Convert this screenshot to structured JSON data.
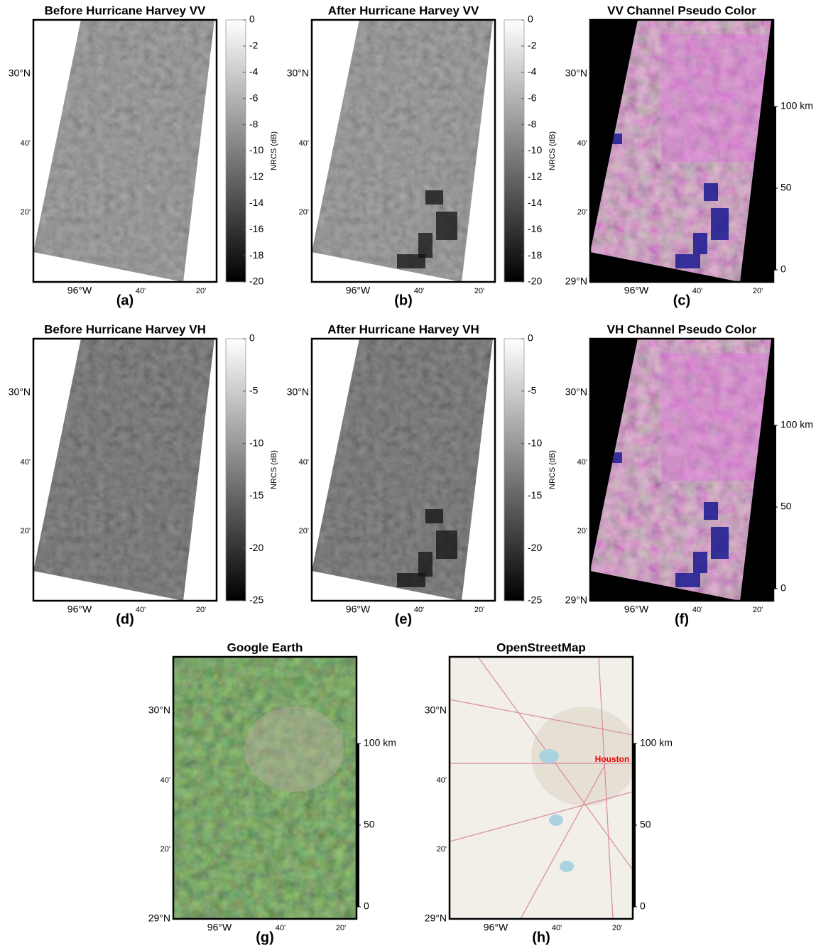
{
  "panels": [
    {
      "title": "Before Hurricane Harvey VV",
      "label": "(a)",
      "kind": "sar-gray",
      "noise_seed": 3,
      "lat_labels": [
        "30°N",
        "40'",
        "20'"
      ],
      "lon_labels": [
        "96°W",
        "40'",
        "20'"
      ],
      "colorbar": {
        "label": "NRCS (dB)",
        "lim": [
          -20,
          0
        ],
        "ticks": [
          0,
          -2,
          -4,
          -6,
          -8,
          -10,
          -12,
          -14,
          -16,
          -18,
          -20
        ]
      }
    },
    {
      "title": "After Hurricane Harvey VV",
      "label": "(b)",
      "kind": "sar-gray",
      "noise_seed": 7,
      "lat_labels": [
        "30°N",
        "40'",
        "20'"
      ],
      "lon_labels": [
        "96°W",
        "40'",
        "20'"
      ],
      "colorbar": {
        "label": "NRCS (dB)",
        "lim": [
          -20,
          0
        ],
        "ticks": [
          0,
          -2,
          -4,
          -6,
          -8,
          -10,
          -12,
          -14,
          -16,
          -18,
          -20
        ]
      }
    },
    {
      "title": "VV Channel Pseudo Color",
      "label": "(c)",
      "kind": "sar-color",
      "lat_labels": [
        "30°N",
        "40'",
        "20'",
        "29°N"
      ],
      "lon_labels": [
        "96°W",
        "40'",
        "20'"
      ],
      "scalebar": {
        "lim": [
          0,
          100
        ],
        "ticks": [
          0,
          50,
          {
            "value": 100,
            "label": "100 km"
          }
        ]
      }
    },
    {
      "title": "Before Hurricane Harvey VH",
      "label": "(d)",
      "kind": "sar-gray",
      "noise_seed": 11,
      "lat_labels": [
        "30°N",
        "40'",
        "20'"
      ],
      "lon_labels": [
        "96°W",
        "40'",
        "20'"
      ],
      "colorbar": {
        "label": "NRCS (dB)",
        "lim": [
          -25,
          0
        ],
        "ticks": [
          0,
          -5,
          -10,
          -15,
          -20,
          -25
        ]
      }
    },
    {
      "title": "After Hurricane Harvey VH",
      "label": "(e)",
      "kind": "sar-gray",
      "noise_seed": 13,
      "lat_labels": [
        "30°N",
        "40'",
        "20'"
      ],
      "lon_labels": [
        "96°W",
        "40'",
        "20'"
      ],
      "colorbar": {
        "label": "NRCS (dB)",
        "lim": [
          -25,
          0
        ],
        "ticks": [
          0,
          -5,
          -10,
          -15,
          -20,
          -25
        ]
      }
    },
    {
      "title": "VH Channel Pseudo Color",
      "label": "(f)",
      "kind": "sar-color",
      "lat_labels": [
        "30°N",
        "40'",
        "20'",
        "29°N"
      ],
      "lon_labels": [
        "96°W",
        "40'",
        "20'"
      ],
      "scalebar": {
        "lim": [
          0,
          100
        ],
        "ticks": [
          0,
          50,
          {
            "value": 100,
            "label": "100 km"
          }
        ]
      }
    },
    {
      "title": "Google Earth",
      "label": "(g)",
      "kind": "optical",
      "lat_labels": [
        "30°N",
        "40'",
        "20'",
        "29°N"
      ],
      "lon_labels": [
        "96°W",
        "40'",
        "20'"
      ],
      "scalebar": {
        "lim": [
          0,
          100
        ],
        "ticks": [
          0,
          50,
          {
            "value": 100,
            "label": "100 km"
          }
        ]
      }
    },
    {
      "title": "OpenStreetMap",
      "label": "(h)",
      "kind": "osm",
      "annotation": "Houston",
      "lat_labels": [
        "30°N",
        "40'",
        "20'",
        "29°N"
      ],
      "lon_labels": [
        "96°W",
        "40'",
        "20'"
      ],
      "scalebar": {
        "lim": [
          0,
          100
        ],
        "ticks": [
          0,
          50,
          {
            "value": 100,
            "label": "100 km"
          }
        ]
      }
    }
  ]
}
